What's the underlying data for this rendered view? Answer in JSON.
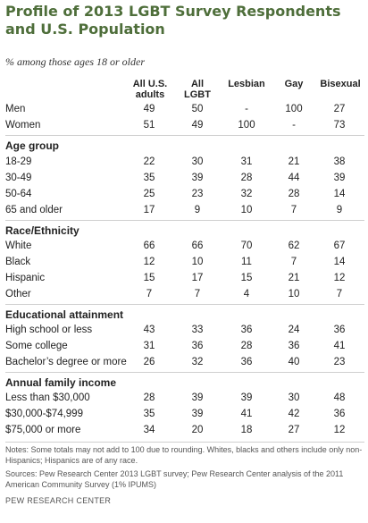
{
  "title": "Profile of 2013 LGBT Survey Respondents and U.S. Population",
  "subtitle": "% among those ages 18 or older",
  "columns": [
    {
      "line1": "All U.S.",
      "line2": "adults"
    },
    {
      "line1": "All",
      "line2": "LGBT"
    },
    {
      "line1": "",
      "line2": "Lesbian"
    },
    {
      "line1": "",
      "line2": "Gay"
    },
    {
      "line1": "",
      "line2": "Bisexual"
    }
  ],
  "sections": [
    {
      "heading": "",
      "rows": [
        {
          "label": "Men",
          "values": [
            "49",
            "50",
            "-",
            "100",
            "27"
          ]
        },
        {
          "label": "Women",
          "values": [
            "51",
            "49",
            "100",
            "-",
            "73"
          ]
        }
      ]
    },
    {
      "heading": "Age group",
      "rows": [
        {
          "label": "18-29",
          "values": [
            "22",
            "30",
            "31",
            "21",
            "38"
          ]
        },
        {
          "label": "30-49",
          "values": [
            "35",
            "39",
            "28",
            "44",
            "39"
          ]
        },
        {
          "label": "50-64",
          "values": [
            "25",
            "23",
            "32",
            "28",
            "14"
          ]
        },
        {
          "label": "65 and older",
          "values": [
            "17",
            "9",
            "10",
            "7",
            "9"
          ]
        }
      ]
    },
    {
      "heading": "Race/Ethnicity",
      "rows": [
        {
          "label": "White",
          "values": [
            "66",
            "66",
            "70",
            "62",
            "67"
          ]
        },
        {
          "label": "Black",
          "values": [
            "12",
            "10",
            "11",
            "7",
            "14"
          ]
        },
        {
          "label": "Hispanic",
          "values": [
            "15",
            "17",
            "15",
            "21",
            "12"
          ]
        },
        {
          "label": "Other",
          "values": [
            "7",
            "7",
            "4",
            "10",
            "7"
          ]
        }
      ]
    },
    {
      "heading": "Educational attainment",
      "rows": [
        {
          "label": "High school or less",
          "values": [
            "43",
            "33",
            "36",
            "24",
            "36"
          ]
        },
        {
          "label": "Some college",
          "values": [
            "31",
            "36",
            "28",
            "36",
            "41"
          ]
        },
        {
          "label": "Bachelor’s degree or more",
          "values": [
            "26",
            "32",
            "36",
            "40",
            "23"
          ]
        }
      ]
    },
    {
      "heading": "Annual family income",
      "rows": [
        {
          "label": "Less than $30,000",
          "values": [
            "28",
            "39",
            "39",
            "30",
            "48"
          ]
        },
        {
          "label": "$30,000-$74,999",
          "values": [
            "35",
            "39",
            "41",
            "42",
            "36"
          ]
        },
        {
          "label": "$75,000 or more",
          "values": [
            "34",
            "20",
            "18",
            "27",
            "12"
          ]
        }
      ]
    }
  ],
  "notes": "Notes: Some totals may not add to 100 due to rounding. Whites, blacks and others include only non-Hispanics; Hispanics are of any race.",
  "sources": "Sources: Pew Research Center 2013 LGBT survey; Pew Research Center analysis of the 2011 American Community Survey (1% IPUMS)",
  "footer": "PEW RESEARCH CENTER",
  "colors": {
    "title": "#4e6e3a",
    "rule": "#cfcfcf"
  }
}
